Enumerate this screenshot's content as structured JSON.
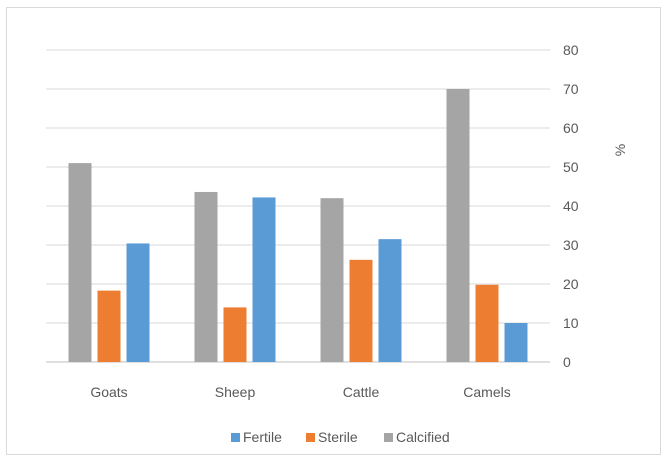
{
  "chart_data": {
    "type": "bar",
    "categories": [
      "Goats",
      "Sheep",
      "Cattle",
      "Camels"
    ],
    "series": [
      {
        "name": "Calcified",
        "values": [
          51,
          43.6,
          42,
          70
        ]
      },
      {
        "name": "Sterile",
        "values": [
          18.3,
          14,
          26.2,
          19.8
        ]
      },
      {
        "name": "Fertile",
        "values": [
          30.4,
          42.2,
          31.5,
          10
        ]
      }
    ],
    "legend_order": [
      "Fertile",
      "Sterile",
      "Calcified"
    ],
    "colors": {
      "Fertile": "#5b9bd5",
      "Sterile": "#ed7d31",
      "Calcified": "#a5a5a5"
    },
    "ylabel": "%",
    "ylim": [
      0,
      80
    ],
    "yticks": [
      0,
      10,
      20,
      30,
      40,
      50,
      60,
      70,
      80
    ],
    "y_axis_position": "right",
    "grid": true,
    "legend_position": "bottom"
  }
}
